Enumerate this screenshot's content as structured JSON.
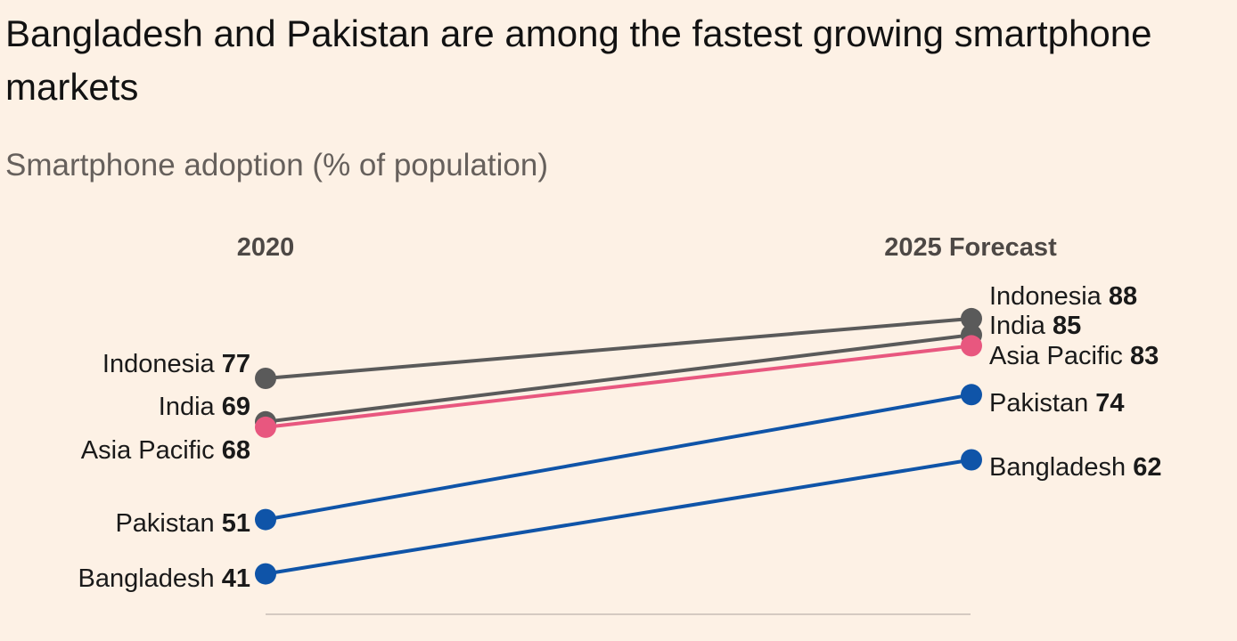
{
  "title": "Bangladesh and Pakistan are among the fastest growing smartphone markets",
  "subtitle": "Smartphone adoption (% of population)",
  "chart_data": {
    "type": "line",
    "chart_style": "slope",
    "x": [
      "2020",
      "2025 Forecast"
    ],
    "ylabel": "Smartphone adoption (% of population)",
    "grid": false,
    "series": [
      {
        "name": "Indonesia",
        "values": [
          77,
          88
        ],
        "color": "#5a5a5a"
      },
      {
        "name": "India",
        "values": [
          69,
          85
        ],
        "color": "#5a5a5a"
      },
      {
        "name": "Asia Pacific",
        "values": [
          68,
          83
        ],
        "color": "#e8577f"
      },
      {
        "name": "Pakistan",
        "values": [
          51,
          74
        ],
        "color": "#0f54a8"
      },
      {
        "name": "Bangladesh",
        "values": [
          41,
          62
        ],
        "color": "#0f54a8"
      }
    ]
  }
}
